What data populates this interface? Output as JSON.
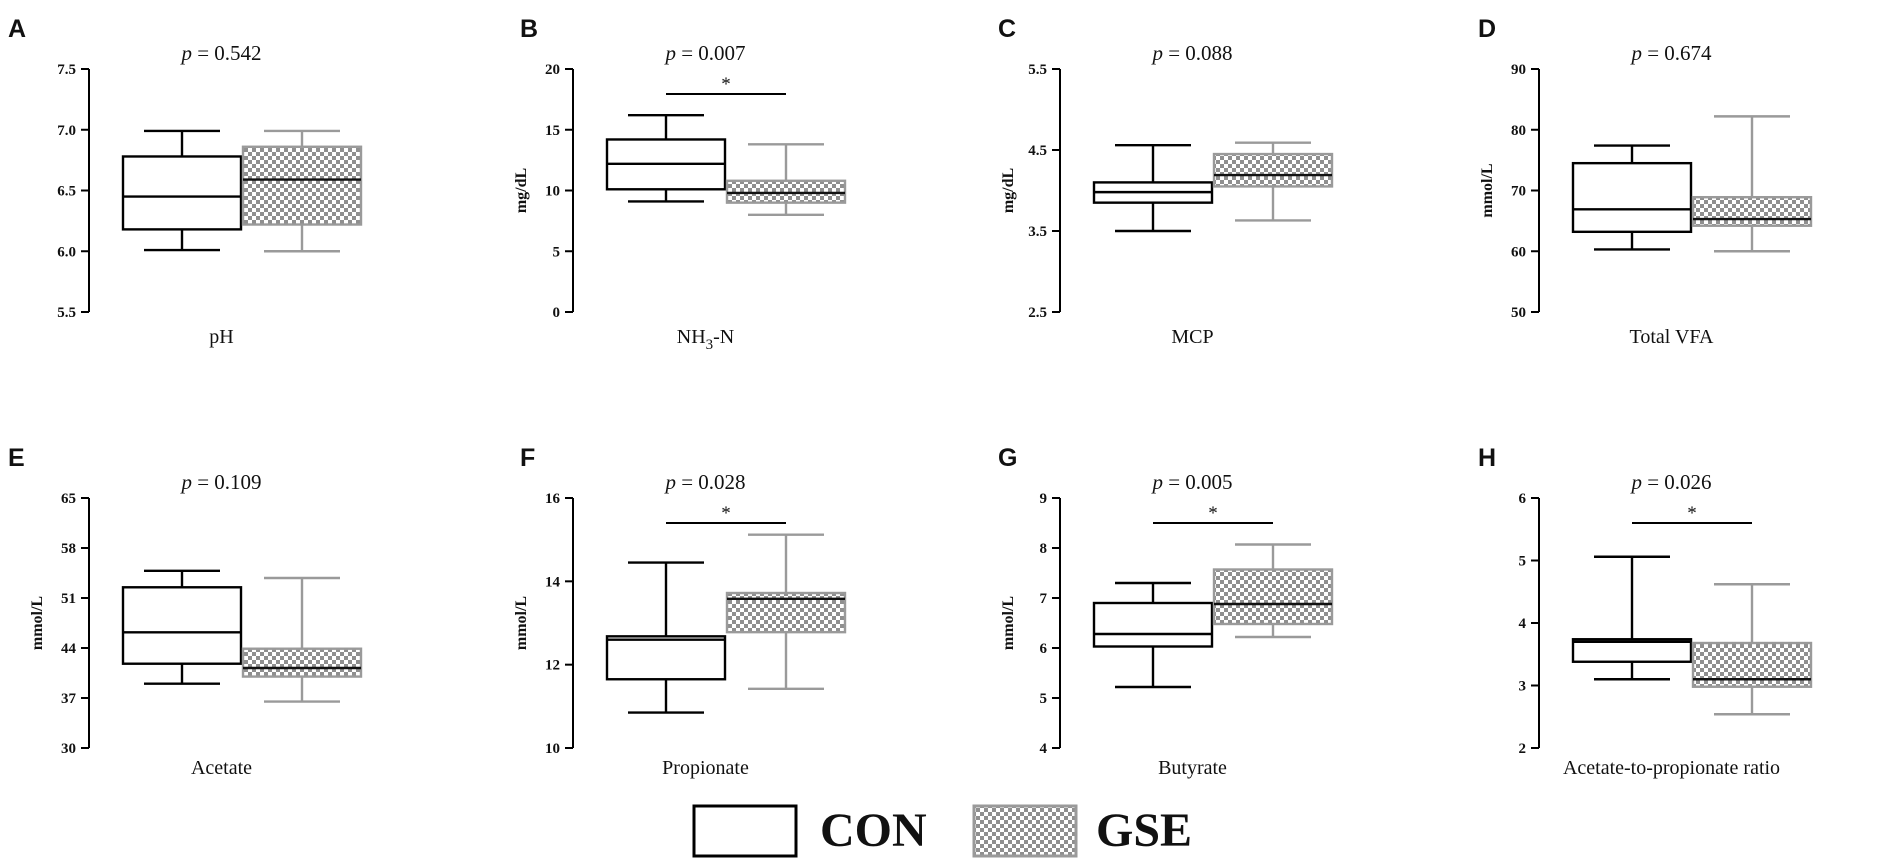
{
  "colors": {
    "con_stroke": "#000000",
    "gse_stroke": "#9a9a9a",
    "checker_dark": "#8f8f8f",
    "checker_light": "#ffffff",
    "axis": "#000000"
  },
  "legend": [
    {
      "key": "CON",
      "label": "CON",
      "pattern": "none"
    },
    {
      "key": "GSE",
      "label": "GSE",
      "pattern": "checker"
    }
  ],
  "p_prefix": "p",
  "chart_data": [
    {
      "type": "box",
      "panel": "A",
      "xlabel": "pH",
      "ylabel": "",
      "ylim": [
        5.5,
        7.5
      ],
      "yticks": [
        "5.5",
        "6.0",
        "6.5",
        "7.0",
        "7.5"
      ],
      "p_value": " = 0.542",
      "significant": false,
      "star": "",
      "series": [
        {
          "name": "CON",
          "min": 6.01,
          "q1": 6.18,
          "median": 6.45,
          "q3": 6.78,
          "max": 6.99
        },
        {
          "name": "GSE",
          "min": 6.0,
          "q1": 6.22,
          "median": 6.59,
          "q3": 6.86,
          "max": 6.99
        }
      ]
    },
    {
      "type": "box",
      "panel": "B",
      "xlabel": "NH3-N",
      "xlabel_main": "NH",
      "xlabel_sub": "3",
      "xlabel_tail": "-N",
      "ylabel": "mg/dL",
      "ylim": [
        0,
        20
      ],
      "yticks": [
        "0",
        "5",
        "10",
        "15",
        "20"
      ],
      "p_value": " = 0.007",
      "significant": true,
      "star": "*",
      "series": [
        {
          "name": "CON",
          "min": 9.1,
          "q1": 10.1,
          "median": 12.2,
          "q3": 14.2,
          "max": 16.2
        },
        {
          "name": "GSE",
          "min": 8.0,
          "q1": 9.0,
          "median": 9.8,
          "q3": 10.8,
          "max": 13.8
        }
      ]
    },
    {
      "type": "box",
      "panel": "C",
      "xlabel": "MCP",
      "ylabel": "mg/dL",
      "ylim": [
        2.5,
        5.5
      ],
      "yticks": [
        "2.5",
        "3.5",
        "4.5",
        "5.5"
      ],
      "p_value": " = 0.088",
      "significant": false,
      "star": "",
      "series": [
        {
          "name": "CON",
          "min": 3.5,
          "q1": 3.85,
          "median": 3.98,
          "q3": 4.1,
          "max": 4.56
        },
        {
          "name": "GSE",
          "min": 3.63,
          "q1": 4.05,
          "median": 4.19,
          "q3": 4.45,
          "max": 4.59
        }
      ]
    },
    {
      "type": "box",
      "panel": "D",
      "xlabel": "Total VFA",
      "ylabel": "mmol/L",
      "ylim": [
        50,
        90
      ],
      "yticks": [
        "50",
        "60",
        "70",
        "80",
        "90"
      ],
      "p_value": " = 0.674",
      "significant": false,
      "star": "",
      "series": [
        {
          "name": "CON",
          "min": 60.3,
          "q1": 63.2,
          "median": 66.9,
          "q3": 74.5,
          "max": 77.4
        },
        {
          "name": "GSE",
          "min": 60.0,
          "q1": 64.2,
          "median": 65.3,
          "q3": 68.9,
          "max": 82.2
        }
      ]
    },
    {
      "type": "box",
      "panel": "E",
      "xlabel": "Acetate",
      "ylabel": "mmol/L",
      "ylim": [
        30,
        65
      ],
      "yticks": [
        "30",
        "37",
        "44",
        "51",
        "58",
        "65"
      ],
      "p_value": " = 0.109",
      "significant": false,
      "star": "",
      "series": [
        {
          "name": "CON",
          "min": 39.0,
          "q1": 41.8,
          "median": 46.2,
          "q3": 52.5,
          "max": 54.8
        },
        {
          "name": "GSE",
          "min": 36.5,
          "q1": 40.0,
          "median": 41.2,
          "q3": 43.9,
          "max": 53.8
        }
      ]
    },
    {
      "type": "box",
      "panel": "F",
      "xlabel": "Propionate",
      "ylabel": "mmol/L",
      "ylim": [
        10,
        16
      ],
      "yticks": [
        "10",
        "12",
        "14",
        "16"
      ],
      "p_value": " = 0.028",
      "significant": true,
      "star": "*",
      "series": [
        {
          "name": "CON",
          "min": 10.85,
          "q1": 11.65,
          "median": 12.6,
          "q3": 12.68,
          "max": 14.45
        },
        {
          "name": "GSE",
          "min": 11.42,
          "q1": 12.78,
          "median": 13.58,
          "q3": 13.72,
          "max": 15.12
        }
      ]
    },
    {
      "type": "box",
      "panel": "G",
      "xlabel": "Butyrate",
      "ylabel": "mmol/L",
      "ylim": [
        4,
        9
      ],
      "yticks": [
        "4",
        "5",
        "6",
        "7",
        "8",
        "9"
      ],
      "p_value": " = 0.005",
      "significant": true,
      "star": "*",
      "series": [
        {
          "name": "CON",
          "min": 5.22,
          "q1": 6.03,
          "median": 6.28,
          "q3": 6.9,
          "max": 7.3
        },
        {
          "name": "GSE",
          "min": 6.22,
          "q1": 6.48,
          "median": 6.88,
          "q3": 7.57,
          "max": 8.07
        }
      ]
    },
    {
      "type": "box",
      "panel": "H",
      "xlabel": "Acetate-to-propionate ratio",
      "ylabel": "",
      "ylim": [
        2,
        6
      ],
      "yticks": [
        "2",
        "3",
        "4",
        "5",
        "6"
      ],
      "p_value": " = 0.026",
      "significant": true,
      "star": "*",
      "series": [
        {
          "name": "CON",
          "min": 3.1,
          "q1": 3.38,
          "median": 3.7,
          "q3": 3.74,
          "max": 5.06
        },
        {
          "name": "GSE",
          "min": 2.54,
          "q1": 2.98,
          "median": 3.1,
          "q3": 3.68,
          "max": 4.62
        }
      ]
    }
  ]
}
